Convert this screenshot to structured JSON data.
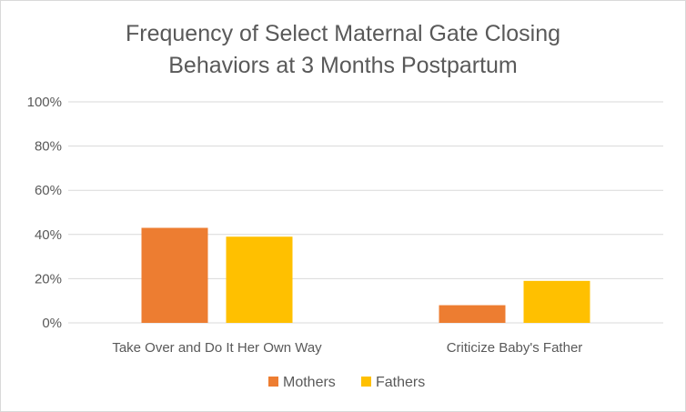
{
  "chart_data": {
    "type": "bar",
    "title_lines": [
      "Frequency of Select Maternal Gate Closing",
      "Behaviors at 3 Months Postpartum"
    ],
    "categories": [
      "Take Over and Do It Her Own Way",
      "Criticize Baby's Father"
    ],
    "series": [
      {
        "name": "Mothers",
        "values": [
          43,
          8
        ],
        "color": "#ED7D31"
      },
      {
        "name": "Fathers",
        "values": [
          39,
          19
        ],
        "color": "#FFC000"
      }
    ],
    "ylim": [
      0,
      100
    ],
    "yticks": [
      0,
      20,
      40,
      60,
      80,
      100
    ],
    "ytick_labels": [
      "0%",
      "20%",
      "40%",
      "60%",
      "80%",
      "100%"
    ],
    "grid": true,
    "legend_position": "bottom"
  }
}
